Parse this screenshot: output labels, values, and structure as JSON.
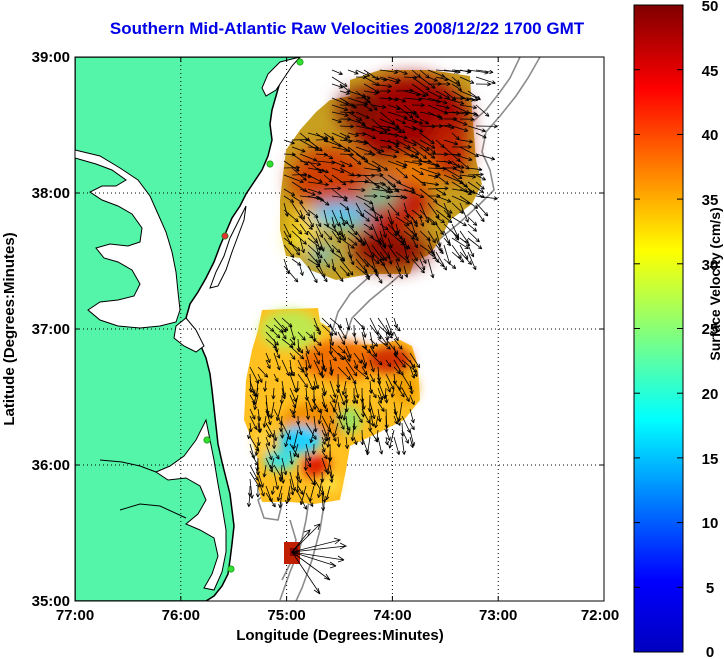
{
  "title": "Southern Mid-Atlantic Raw Velocities 2008/12/22 1700 GMT",
  "x_axis": {
    "label": "Longitude (Degrees:Minutes)",
    "ticks": [
      "77:00",
      "76:00",
      "75:00",
      "74:00",
      "73:00",
      "72:00"
    ]
  },
  "y_axis": {
    "label": "Latitude (Degrees:Minutes)",
    "ticks": [
      "39:00",
      "38:00",
      "37:00",
      "36:00",
      "35:00"
    ]
  },
  "colorbar": {
    "label": "Surface Velocity (cm/s)",
    "ticks": [
      "50",
      "45",
      "40",
      "35",
      "30",
      "25",
      "20",
      "15",
      "10",
      "5",
      "0"
    ],
    "min": 0,
    "max": 50,
    "colormap": "jet"
  },
  "map": {
    "extent": {
      "lon": [
        -77,
        -72
      ],
      "lat": [
        35,
        39
      ]
    },
    "land_color": "#54f5a8",
    "water_color": "#ffffff",
    "coastline_color": "#000000",
    "bathymetry_color": "#8c8c8c",
    "grid": "dotted",
    "site_color": "#33dd33",
    "site_highlight_color": "#e03030",
    "vector_color": "#000000"
  }
}
